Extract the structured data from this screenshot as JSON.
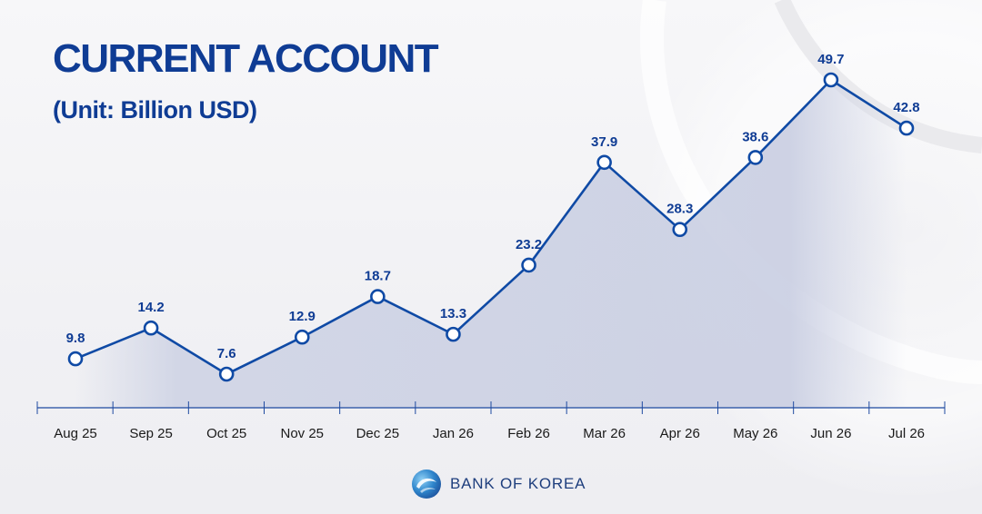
{
  "chart_data": {
    "type": "area",
    "title": "CURRENT ACCOUNT",
    "subtitle": "(Unit: Billion USD)",
    "categories": [
      "Aug 25",
      "Sep 25",
      "Oct 25",
      "Nov 25",
      "Dec 25",
      "Jan 26",
      "Feb 26",
      "Mar 26",
      "Apr 26",
      "May 26",
      "Jun 26",
      "Jul 26"
    ],
    "series": [
      {
        "values": [
          9.8,
          14.2,
          7.6,
          12.9,
          18.7,
          13.3,
          23.2,
          37.9,
          28.3,
          38.6,
          49.7,
          42.8
        ]
      }
    ],
    "data_labels": [
      "9.8",
      "14.2",
      "7.6",
      "12.9",
      "18.7",
      "13.3",
      "23.2",
      "37.9",
      "28.3",
      "38.6",
      "49.7",
      "42.8"
    ],
    "grid": false,
    "colors": {
      "line": "#0f4aa5",
      "fill": "#c9cde0",
      "text": "#0f3c94",
      "tick_text": "#1a1a1a",
      "axis": "#1e4aa0"
    }
  },
  "logo": {
    "text": "BANK OF KOREA",
    "icon": "bank-of-korea-emblem-icon"
  }
}
